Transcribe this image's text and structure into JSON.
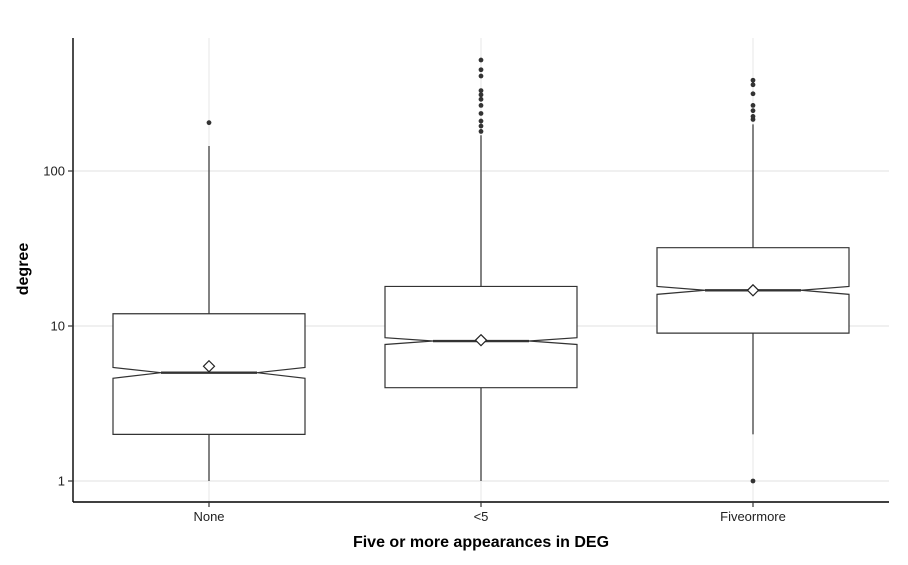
{
  "chart_data": {
    "type": "boxplot",
    "title": "",
    "xlabel": "Five or more appearances in DEG",
    "ylabel": "degree",
    "y_scale": "log10",
    "ylim": [
      0.75,
      1300
    ],
    "y_ticks": [
      1,
      10,
      100
    ],
    "y_tick_labels": [
      "1",
      "10",
      "100"
    ],
    "grid": true,
    "notched": true,
    "categories": [
      "None",
      "<5",
      "Fiveormore"
    ],
    "boxes": [
      {
        "category": "None",
        "whisker_low": 1,
        "q1": 2,
        "median": 5,
        "q3": 12,
        "whisker_high": 145,
        "notch_low": 4.6,
        "notch_high": 5.4,
        "mean": 5.5,
        "outliers": [
          205
        ]
      },
      {
        "category": "<5",
        "whisker_low": 1,
        "q1": 4,
        "median": 8,
        "q3": 18,
        "whisker_high": 170,
        "notch_low": 7.6,
        "notch_high": 8.4,
        "mean": 8.1,
        "outliers": [
          180,
          195,
          210,
          235,
          265,
          290,
          310,
          330,
          410,
          450,
          520
        ]
      },
      {
        "category": "Fiveormore",
        "whisker_low": 2,
        "q1": 9,
        "median": 17,
        "q3": 32,
        "whisker_high": 200,
        "notch_low": 16,
        "notch_high": 18,
        "mean": 17,
        "outliers": [
          1,
          215,
          225,
          245,
          265,
          315,
          360,
          385
        ]
      }
    ]
  }
}
